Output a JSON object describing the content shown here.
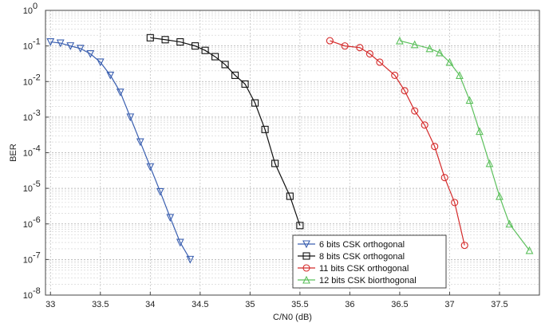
{
  "chart_data": {
    "type": "line",
    "title": "",
    "xlabel": "C/N0 (dB)",
    "ylabel": "BER",
    "xlim": [
      32.95,
      37.9
    ],
    "ylim_log10": [
      -8,
      0
    ],
    "y_scale": "log",
    "grid": true,
    "legend_position": "bottom-right",
    "x_ticks": [
      33,
      33.5,
      34,
      34.5,
      35,
      35.5,
      36,
      36.5,
      37,
      37.5
    ],
    "x_tick_labels": [
      "33",
      "33.5",
      "34",
      "34.5",
      "35",
      "35.5",
      "36",
      "36.5",
      "37",
      "37.5"
    ],
    "y_tick_exponents": [
      0,
      -1,
      -2,
      -3,
      -4,
      -5,
      -6,
      -7,
      -8
    ],
    "y_tick_base": "10",
    "series": [
      {
        "name": "6 bits CSK orthogonal",
        "color": "#3a5fb0",
        "marker": "triangle-down",
        "x": [
          33.0,
          33.1,
          33.2,
          33.3,
          33.4,
          33.5,
          33.6,
          33.7,
          33.8,
          33.9,
          34.0,
          34.1,
          34.2,
          34.3,
          34.4
        ],
        "y": [
          0.13,
          0.12,
          0.1,
          0.085,
          0.06,
          0.035,
          0.015,
          0.005,
          0.001,
          0.0002,
          4e-05,
          8e-06,
          1.5e-06,
          3e-07,
          1e-07
        ]
      },
      {
        "name": "8 bits CSK orthogonal",
        "color": "#111111",
        "marker": "square",
        "x": [
          34.0,
          34.15,
          34.3,
          34.45,
          34.55,
          34.65,
          34.75,
          34.85,
          34.95,
          35.05,
          35.15,
          35.25,
          35.4,
          35.5
        ],
        "y": [
          0.17,
          0.15,
          0.13,
          0.1,
          0.075,
          0.05,
          0.03,
          0.015,
          0.0085,
          0.0025,
          0.00045,
          5e-05,
          6e-06,
          9e-07
        ]
      },
      {
        "name": "11 bits CSK orthogonal",
        "color": "#d42a2a",
        "marker": "circle",
        "x": [
          35.8,
          35.95,
          36.1,
          36.2,
          36.3,
          36.45,
          36.55,
          36.65,
          36.75,
          36.85,
          36.95,
          37.05,
          37.15
        ],
        "y": [
          0.14,
          0.1,
          0.09,
          0.06,
          0.035,
          0.015,
          0.0055,
          0.0015,
          0.0006,
          0.00015,
          2e-05,
          4e-06,
          2.5e-07
        ]
      },
      {
        "name": "12 bits CSK biorthogonal",
        "color": "#5cc05c",
        "marker": "triangle-up",
        "x": [
          36.5,
          36.65,
          36.8,
          36.9,
          37.0,
          37.1,
          37.2,
          37.3,
          37.4,
          37.5,
          37.6,
          37.8
        ],
        "y": [
          0.14,
          0.11,
          0.085,
          0.065,
          0.035,
          0.015,
          0.003,
          0.0004,
          5e-05,
          6e-06,
          1e-06,
          1.8e-07
        ]
      }
    ]
  }
}
